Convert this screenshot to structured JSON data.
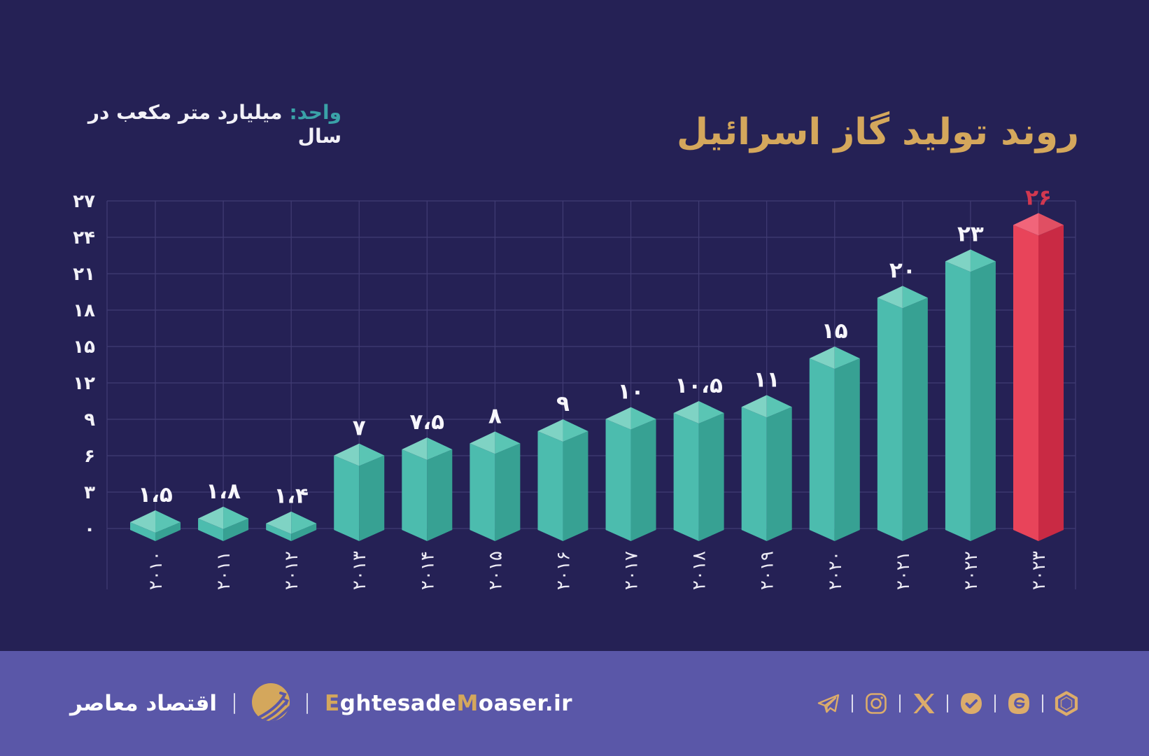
{
  "title": "روند تولید گاز اسرائیل",
  "unit_label": {
    "prefix": "واحد:",
    "text": "میلیارد متر مکعب در سال"
  },
  "colors": {
    "background": "#252155",
    "footer_bg": "#5a57a8",
    "gold": "#d4a75c",
    "icon_gold": "#dcac6b",
    "teal_accent": "#3aa2a8",
    "grid": "#413c74",
    "axis_text": "#f2f1f7",
    "value_text": "#f7f6fb",
    "highlight_value_text": "#d23850",
    "bar_teal": {
      "top_left": "#7fd3c4",
      "top_right": "#5ac5b4",
      "left": "#4cbcae",
      "right": "#37a193"
    },
    "bar_red": {
      "top_left": "#f1657a",
      "top_right": "#e04f63",
      "left": "#e8445a",
      "right": "#c92a44"
    }
  },
  "chart_data": {
    "type": "bar",
    "style": "isometric-3d-columns",
    "title": "روند تولید گاز اسرائیل",
    "unit": "میلیارد متر مکعب در سال",
    "xlabel": "",
    "ylabel": "",
    "categories": [
      "2010",
      "2011",
      "2012",
      "2013",
      "2014",
      "2015",
      "2016",
      "2017",
      "2018",
      "2019",
      "2020",
      "2021",
      "2022",
      "2023"
    ],
    "categories_fa": [
      "۲۰۱۰",
      "۲۰۱۱",
      "۲۰۱۲",
      "۲۰۱۳",
      "۲۰۱۴",
      "۲۰۱۵",
      "۲۰۱۶",
      "۲۰۱۷",
      "۲۰۱۸",
      "۲۰۱۹",
      "۲۰۲۰",
      "۲۰۲۱",
      "۲۰۲۲",
      "۲۰۲۳"
    ],
    "values": [
      1.5,
      1.8,
      1.4,
      7,
      7.5,
      8,
      9,
      10,
      10.5,
      11,
      15,
      20,
      23,
      26
    ],
    "value_labels_fa": [
      "۱،۵",
      "۱،۸",
      "۱،۴",
      "۷",
      "۷،۵",
      "۸",
      "۹",
      "۱۰",
      "۱۰،۵",
      "۱۱",
      "۱۵",
      "۲۰",
      "۲۳",
      "۲۶"
    ],
    "highlight_index": 13,
    "y_ticks": [
      0,
      3,
      6,
      9,
      12,
      15,
      18,
      21,
      24,
      27
    ],
    "y_tick_labels_fa": [
      "۰",
      "۳",
      "۶",
      "۹",
      "۱۲",
      "۱۵",
      "۱۸",
      "۲۱",
      "۲۴",
      "۲۷"
    ],
    "ylim": [
      0,
      27
    ],
    "grid": true,
    "legend": false
  },
  "footer": {
    "brand_fa": "اقتصاد معاصر",
    "url_segments": [
      {
        "text": "E",
        "gold": true
      },
      {
        "text": "ghtesade",
        "gold": false
      },
      {
        "text": "M",
        "gold": true
      },
      {
        "text": "oaser.ir",
        "gold": false
      }
    ],
    "social_icons": [
      "telegram",
      "instagram",
      "x-twitter",
      "bale",
      "eitaa",
      "rubika"
    ]
  }
}
